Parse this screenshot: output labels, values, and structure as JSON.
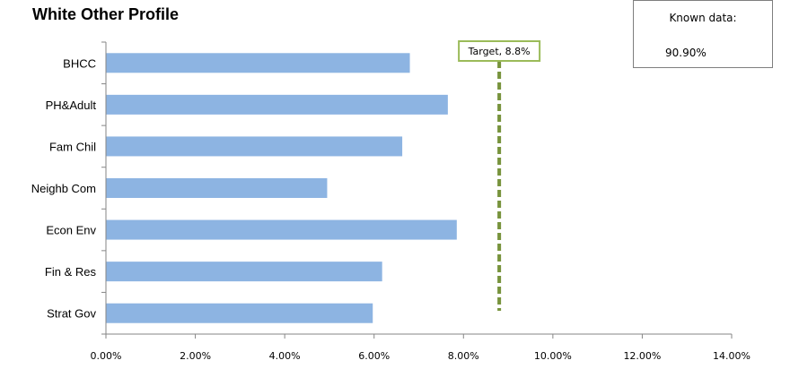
{
  "title": "White Other Profile",
  "known_data": {
    "label": "Known data:",
    "value": "90.90%"
  },
  "chart_data": {
    "type": "bar",
    "orientation": "horizontal",
    "title": "White Other Profile",
    "categories": [
      "BHCC",
      "PH&Adult",
      "Fam Chil",
      "Neighb Com",
      "Econ Env",
      "Fin & Res",
      "Strat Gov"
    ],
    "values": [
      6.8,
      7.65,
      6.63,
      4.95,
      7.85,
      6.18,
      5.97
    ],
    "xlim": [
      0,
      14
    ],
    "xticks": [
      0,
      2,
      4,
      6,
      8,
      10,
      12,
      14
    ],
    "xtick_labels": [
      "0.00%",
      "2.00%",
      "4.00%",
      "6.00%",
      "8.00%",
      "10.00%",
      "12.00%",
      "14.00%"
    ],
    "xlabel": "",
    "ylabel": "",
    "grid": false,
    "bar_color": "#8DB4E2",
    "target": {
      "value": 8.8,
      "label": "Target, 8.8%",
      "color": "#77933C"
    }
  }
}
